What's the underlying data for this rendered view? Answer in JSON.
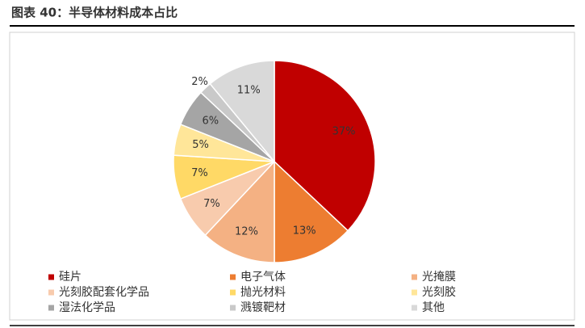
{
  "chart_data": {
    "type": "pie",
    "title": "图表 40：半导体材料成本占比",
    "categories": [
      "硅片",
      "电子气体",
      "光掩膜",
      "光刻胶配套化学品",
      "抛光材料",
      "光刻胶",
      "湿法化学品",
      "溅镀靶材",
      "其他"
    ],
    "values": [
      37,
      13,
      12,
      7,
      7,
      5,
      6,
      2,
      11
    ],
    "value_labels": [
      "37%",
      "13%",
      "12%",
      "7%",
      "7%",
      "5%",
      "6%",
      "2%",
      "11%"
    ],
    "colors": [
      "#c00000",
      "#ed7d31",
      "#f4b183",
      "#f8cbad",
      "#ffd966",
      "#ffe699",
      "#a5a5a5",
      "#c9c9c9",
      "#d9d9d9"
    ],
    "legend": "bottom"
  }
}
